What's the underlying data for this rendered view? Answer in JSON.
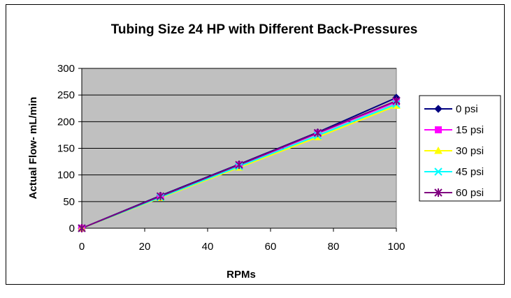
{
  "chart_data": {
    "type": "line",
    "title": "Tubing Size 24 HP with Different Back-Pressures",
    "xlabel": "RPMs",
    "ylabel": "Actual Flow- mL/min",
    "x": [
      0,
      25,
      50,
      75,
      100
    ],
    "xlim": [
      0,
      100
    ],
    "ylim": [
      0,
      300
    ],
    "xticks": [
      "0",
      "20",
      "40",
      "60",
      "80",
      "100"
    ],
    "yticks": [
      "0",
      "50",
      "100",
      "150",
      "200",
      "250",
      "300"
    ],
    "grid": "horizontal",
    "plot_background": "#c0c0c0",
    "legend_position": "right",
    "series": [
      {
        "name": "0 psi",
        "marker": "diamond",
        "color": "#000080",
        "values": [
          0,
          61,
          120,
          180,
          245
        ]
      },
      {
        "name": "15 psi",
        "marker": "square",
        "color": "#ff00ff",
        "values": [
          0,
          59,
          118,
          178,
          237
        ]
      },
      {
        "name": "30 psi",
        "marker": "triangle",
        "color": "#ffff00",
        "values": [
          0,
          57,
          114,
          171,
          230
        ]
      },
      {
        "name": "45 psi",
        "marker": "x",
        "color": "#00ffff",
        "values": [
          0,
          58,
          116,
          174,
          233
        ]
      },
      {
        "name": "60 psi",
        "marker": "star",
        "color": "#800080",
        "values": [
          0,
          60,
          119,
          179,
          239
        ]
      }
    ]
  }
}
